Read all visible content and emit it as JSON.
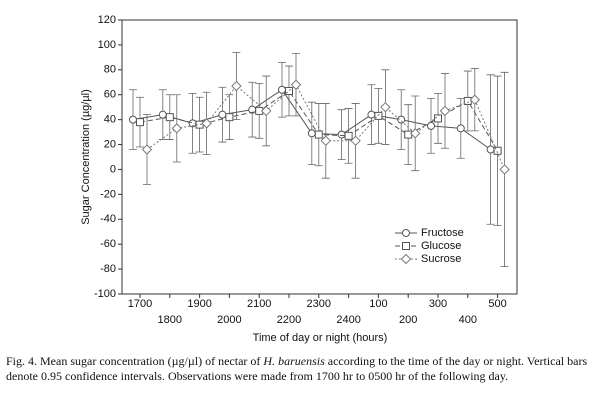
{
  "chart_data": {
    "type": "line",
    "y_label": "Sugar Concentration (µg/µl)",
    "x_label": "Time of day or night (hours)",
    "categories": [
      "1700",
      "1800",
      "1900",
      "2000",
      "2100",
      "2200",
      "2300",
      "2400",
      "100",
      "200",
      "300",
      "400",
      "500"
    ],
    "series": [
      {
        "name": "Fructose",
        "color": "#555555",
        "marker": "circle",
        "dash": "none",
        "values": [
          40,
          44,
          37,
          44,
          48,
          64,
          29,
          28,
          44,
          40,
          35,
          33,
          16
        ],
        "errors": [
          24,
          20,
          24,
          22,
          22,
          22,
          25,
          20,
          24,
          24,
          22,
          24,
          60
        ]
      },
      {
        "name": "Glucose",
        "color": "#555555",
        "marker": "square",
        "dash": "5,3",
        "values": [
          38,
          42,
          36,
          42,
          47,
          63,
          28,
          27,
          43,
          28,
          41,
          55,
          15
        ],
        "errors": [
          20,
          18,
          22,
          18,
          22,
          20,
          25,
          22,
          22,
          24,
          20,
          24,
          60
        ]
      },
      {
        "name": "Sucrose",
        "color": "#777777",
        "marker": "diamond",
        "dash": "2,2",
        "values": [
          16,
          33,
          37,
          67,
          47,
          68,
          23,
          23,
          50,
          29,
          47,
          56,
          0
        ],
        "errors": [
          28,
          27,
          25,
          27,
          28,
          25,
          30,
          30,
          30,
          30,
          30,
          25,
          78
        ]
      }
    ],
    "ylim": [
      -100,
      120
    ],
    "yticks": [
      -100,
      -80,
      -60,
      -40,
      -20,
      0,
      20,
      40,
      60,
      80,
      100,
      120
    ],
    "grid": false
  },
  "caption": {
    "parts": [
      "Fig. 4. Mean sugar concentration (µg/µl) of nectar of ",
      "H. baruensis",
      " according to the time of the day or night. Vertical bars denote 0.95 confidence intervals. Observations were made from 1700 hr to 0500 hr of the following day."
    ]
  }
}
